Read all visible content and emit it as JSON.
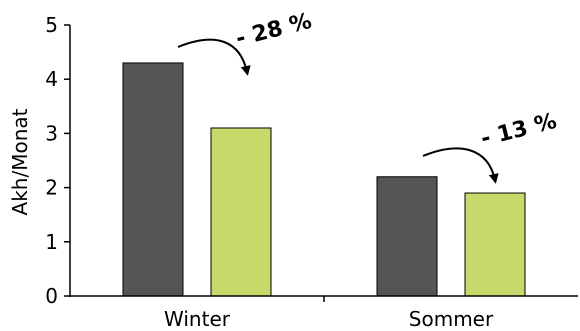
{
  "chart_data": {
    "type": "bar",
    "categories": [
      "Winter",
      "Sommer"
    ],
    "series": [
      {
        "values": [
          4.3,
          2.2
        ],
        "color": "#555555"
      },
      {
        "values": [
          3.1,
          1.9
        ],
        "color": "#c8d96b"
      }
    ],
    "ylabel": "Akh/Monat",
    "xlabel": "",
    "ylim": [
      0,
      5
    ],
    "yticks": [
      0,
      1,
      2,
      3,
      4,
      5
    ],
    "grid": false,
    "legend": "none",
    "annotations": [
      {
        "text": "- 28 %",
        "category": "Winter"
      },
      {
        "text": "- 13 %",
        "category": "Sommer"
      }
    ]
  }
}
